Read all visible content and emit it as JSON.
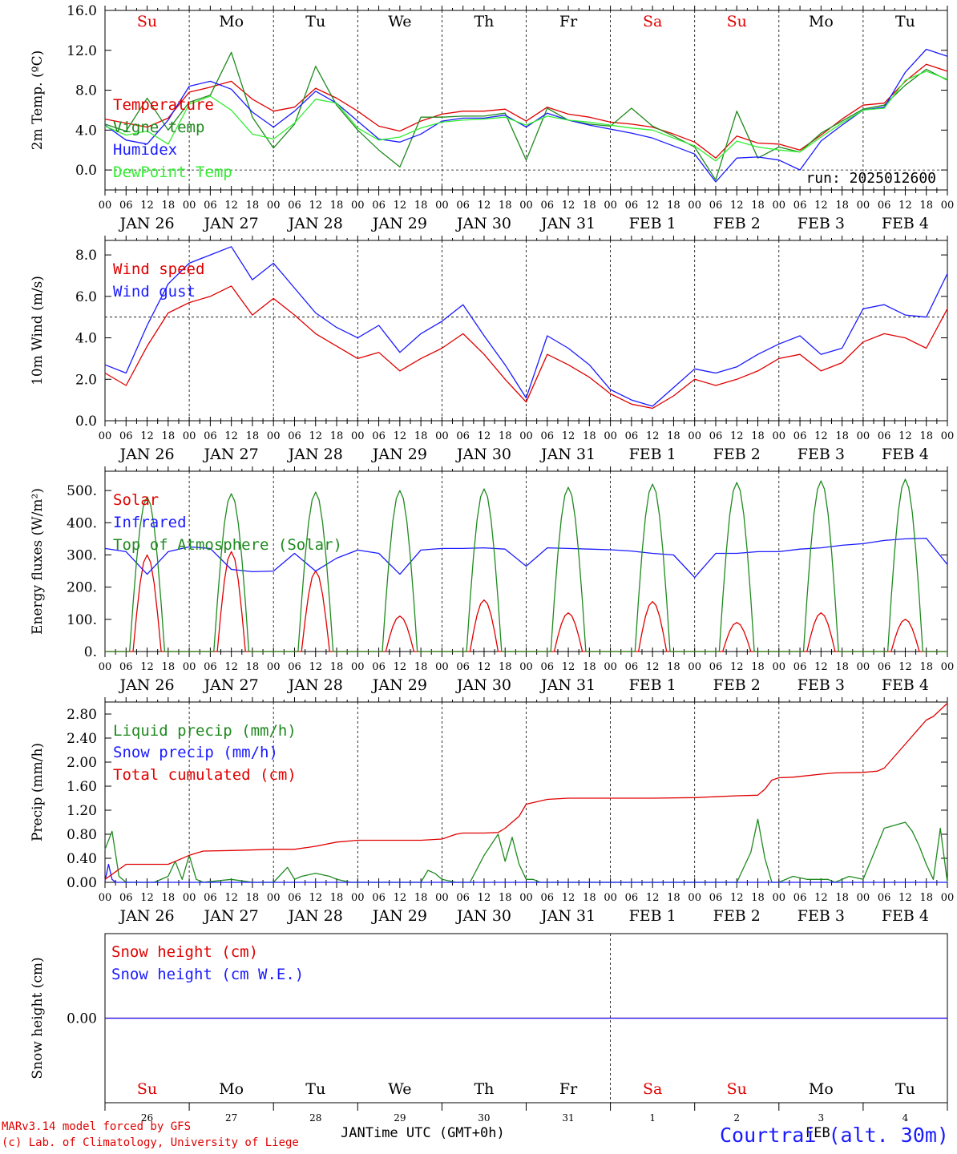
{
  "run_label": "run: 2025012600",
  "footer": {
    "model": "MARv3.14 model forced by GFS",
    "credit": "(c) Lab. of Climatology, University of Liege",
    "xaxis_title": "Time UTC (GMT+0h)",
    "month_left": "JAN",
    "month_right": "FEB",
    "station": "Courtrai (alt. 30m)"
  },
  "days": {
    "dates": [
      "JAN 26",
      "JAN 27",
      "JAN 28",
      "JAN 29",
      "JAN 30",
      "JAN 31",
      "FEB  1",
      "FEB  2",
      "FEB  3",
      "FEB  4"
    ],
    "weekdays": [
      "Su",
      "Mo",
      "Tu",
      "We",
      "Th",
      "Fr",
      "Sa",
      "Su",
      "Mo",
      "Tu"
    ],
    "weekday_colors": [
      "#e00000",
      "#000000",
      "#000000",
      "#000000",
      "#000000",
      "#000000",
      "#e00000",
      "#e00000",
      "#000000",
      "#000000"
    ],
    "day_numbers": [
      "26",
      "27",
      "28",
      "29",
      "30",
      "31",
      "1",
      "2",
      "3",
      "4"
    ],
    "hour_labels": [
      "00",
      "06",
      "12",
      "18"
    ],
    "end_hour_label": "00"
  },
  "colors": {
    "red": "#e00000",
    "green": "#1f8a1f",
    "blue": "#1a1aff",
    "lightgreen": "#33ee33"
  },
  "chart_data": [
    {
      "type": "line",
      "ylabel": "2m Temp. (ºC)",
      "ylim": [
        -2,
        16
      ],
      "yticks": [
        0,
        4,
        8,
        12,
        16
      ],
      "ytick_labels": [
        "0.0",
        "4.0",
        "8.0",
        "12.0",
        "16.0"
      ],
      "reference_line": 0,
      "x_unit": "hours since JAN 26 00 UTC",
      "x_range": [
        0,
        240
      ],
      "series": [
        {
          "name": "Temperature",
          "color": "#e00000",
          "x": [
            0,
            6,
            12,
            18,
            24,
            30,
            36,
            42,
            48,
            54,
            60,
            66,
            72,
            78,
            84,
            90,
            96,
            102,
            108,
            114,
            120,
            126,
            132,
            138,
            144,
            150,
            156,
            162,
            168,
            174,
            180,
            186,
            192,
            198,
            204,
            210,
            216,
            222,
            228,
            234,
            240
          ],
          "y": [
            5.1,
            4.7,
            4.3,
            5.2,
            7.8,
            8.3,
            8.9,
            7.1,
            5.9,
            6.3,
            8.2,
            7.2,
            5.9,
            4.4,
            3.9,
            4.9,
            5.6,
            5.9,
            5.9,
            6.1,
            4.9,
            6.3,
            5.6,
            5.3,
            4.8,
            4.6,
            4.3,
            3.6,
            2.8,
            1.2,
            3.4,
            2.7,
            2.6,
            2.0,
            3.5,
            5.1,
            6.5,
            6.7,
            8.9,
            10.6,
            9.9
          ]
        },
        {
          "name": "Vigne temp",
          "color": "#1f8a1f",
          "x": [
            0,
            6,
            12,
            18,
            24,
            30,
            36,
            42,
            48,
            54,
            60,
            66,
            72,
            78,
            84,
            90,
            96,
            102,
            108,
            114,
            120,
            126,
            132,
            138,
            144,
            150,
            156,
            162,
            168,
            174,
            180,
            186,
            192,
            198,
            204,
            210,
            216,
            222,
            228,
            234,
            240
          ],
          "y": [
            4.6,
            3.9,
            7.2,
            4.0,
            6.8,
            7.5,
            11.8,
            5.3,
            2.2,
            4.6,
            10.4,
            6.5,
            4.0,
            2.0,
            0.3,
            5.3,
            5.3,
            5.4,
            5.4,
            5.7,
            1.0,
            6.2,
            5.0,
            4.6,
            4.4,
            6.2,
            4.4,
            3.4,
            2.3,
            -1.0,
            5.9,
            1.2,
            2.3,
            1.8,
            3.7,
            4.9,
            6.1,
            6.5,
            8.5,
            10.1,
            9.0
          ]
        },
        {
          "name": "Humidex",
          "color": "#1a1aff",
          "x": [
            0,
            6,
            12,
            18,
            24,
            30,
            36,
            42,
            48,
            54,
            60,
            66,
            72,
            78,
            84,
            90,
            96,
            102,
            108,
            114,
            120,
            126,
            132,
            138,
            144,
            150,
            156,
            162,
            168,
            174,
            180,
            186,
            192,
            198,
            204,
            210,
            216,
            222,
            228,
            234,
            240
          ],
          "y": [
            4.5,
            3.0,
            2.6,
            5.0,
            8.4,
            8.9,
            8.1,
            5.8,
            4.3,
            5.9,
            7.9,
            6.7,
            4.9,
            3.1,
            2.8,
            3.6,
            4.9,
            5.2,
            5.2,
            5.5,
            4.3,
            5.7,
            5.0,
            4.5,
            4.1,
            3.7,
            3.2,
            2.4,
            1.6,
            -1.2,
            1.2,
            1.3,
            1.0,
            0.0,
            2.9,
            4.5,
            6.0,
            6.3,
            9.8,
            12.1,
            11.4
          ]
        },
        {
          "name": "DewPoint Temp",
          "color": "#33ee33",
          "x": [
            0,
            6,
            12,
            18,
            24,
            30,
            36,
            42,
            48,
            54,
            60,
            66,
            72,
            78,
            84,
            90,
            96,
            102,
            108,
            114,
            120,
            126,
            132,
            138,
            144,
            150,
            156,
            162,
            168,
            174,
            180,
            186,
            192,
            198,
            204,
            210,
            216,
            222,
            228,
            234,
            240
          ],
          "y": [
            4.4,
            3.5,
            3.9,
            2.6,
            6.6,
            7.4,
            6.0,
            3.6,
            3.1,
            4.7,
            7.1,
            6.7,
            4.2,
            3.0,
            3.3,
            4.2,
            4.8,
            5.0,
            5.1,
            5.3,
            4.5,
            5.4,
            5.0,
            4.8,
            4.5,
            4.2,
            4.0,
            3.2,
            2.4,
            0.9,
            2.9,
            2.3,
            2.0,
            1.8,
            3.3,
            4.7,
            6.0,
            6.2,
            9.0,
            9.9,
            9.1
          ]
        }
      ]
    },
    {
      "type": "line",
      "ylabel": "10m Wind (m/s)",
      "ylim": [
        0,
        8.7
      ],
      "yticks": [
        0,
        2,
        4,
        6,
        8
      ],
      "ytick_labels": [
        "0.0",
        "2.0",
        "4.0",
        "6.0",
        "8.0"
      ],
      "reference_line": 5,
      "x_unit": "hours since JAN 26 00 UTC",
      "x_range": [
        0,
        240
      ],
      "series": [
        {
          "name": "Wind speed",
          "color": "#e00000",
          "x": [
            0,
            6,
            12,
            18,
            24,
            30,
            36,
            42,
            48,
            54,
            60,
            66,
            72,
            78,
            84,
            90,
            96,
            102,
            108,
            114,
            120,
            126,
            132,
            138,
            144,
            150,
            156,
            162,
            168,
            174,
            180,
            186,
            192,
            198,
            204,
            210,
            216,
            222,
            228,
            234,
            240
          ],
          "y": [
            2.3,
            1.7,
            3.6,
            5.2,
            5.7,
            6.0,
            6.5,
            5.1,
            5.9,
            5.1,
            4.2,
            3.6,
            3.0,
            3.3,
            2.4,
            3.0,
            3.5,
            4.2,
            3.2,
            2.0,
            0.9,
            3.2,
            2.7,
            2.1,
            1.3,
            0.8,
            0.6,
            1.2,
            2.0,
            1.7,
            2.0,
            2.4,
            3.0,
            3.2,
            2.4,
            2.8,
            3.8,
            4.2,
            4.0,
            3.5,
            5.4
          ]
        },
        {
          "name": "Wind gust",
          "color": "#1a1aff",
          "x": [
            0,
            6,
            12,
            18,
            24,
            30,
            36,
            42,
            48,
            54,
            60,
            66,
            72,
            78,
            84,
            90,
            96,
            102,
            108,
            114,
            120,
            126,
            132,
            138,
            144,
            150,
            156,
            162,
            168,
            174,
            180,
            186,
            192,
            198,
            204,
            210,
            216,
            222,
            228,
            234,
            240
          ],
          "y": [
            2.7,
            2.3,
            4.6,
            6.6,
            7.6,
            8.0,
            8.4,
            6.8,
            7.6,
            6.4,
            5.2,
            4.5,
            4.0,
            4.6,
            3.3,
            4.2,
            4.8,
            5.6,
            4.1,
            2.7,
            1.1,
            4.1,
            3.5,
            2.7,
            1.5,
            1.0,
            0.7,
            1.6,
            2.5,
            2.3,
            2.6,
            3.2,
            3.7,
            4.1,
            3.2,
            3.5,
            5.4,
            5.6,
            5.1,
            5.0,
            7.1
          ]
        }
      ]
    },
    {
      "type": "line",
      "ylabel": "Energy fluxes (W/m²)",
      "ylim": [
        0,
        560
      ],
      "yticks": [
        0,
        100,
        200,
        300,
        400,
        500
      ],
      "ytick_labels": [
        "0.",
        "100.",
        "200.",
        "300.",
        "400.",
        "500."
      ],
      "x_unit": "hours since JAN 26 00 UTC",
      "x_range": [
        0,
        240
      ],
      "daily_peaks": {
        "Solar": [
          300,
          310,
          250,
          110,
          160,
          120,
          155,
          90,
          120,
          100
        ],
        "Top of Atmosphere (Solar)": [
          480,
          490,
          495,
          500,
          505,
          510,
          520,
          525,
          530,
          535
        ]
      },
      "series": [
        {
          "name": "Solar",
          "color": "#e00000"
        },
        {
          "name": "Infrared",
          "color": "#1a1aff",
          "x": [
            0,
            6,
            12,
            18,
            24,
            30,
            36,
            42,
            48,
            54,
            60,
            66,
            72,
            78,
            84,
            90,
            96,
            102,
            108,
            114,
            120,
            126,
            132,
            138,
            144,
            150,
            156,
            162,
            168,
            174,
            180,
            186,
            192,
            198,
            204,
            210,
            216,
            222,
            228,
            234,
            240
          ],
          "y": [
            320,
            310,
            240,
            310,
            325,
            320,
            255,
            248,
            250,
            305,
            250,
            290,
            315,
            305,
            240,
            315,
            320,
            320,
            322,
            318,
            265,
            322,
            320,
            318,
            316,
            312,
            305,
            300,
            230,
            305,
            305,
            310,
            310,
            318,
            322,
            330,
            335,
            345,
            350,
            352,
            270
          ]
        },
        {
          "name": "Top of Atmosphere (Solar)",
          "color": "#1f8a1f"
        }
      ]
    },
    {
      "type": "line",
      "ylabel": "Precip (mm/h)",
      "ylim": [
        0,
        3.0
      ],
      "yticks": [
        0,
        0.4,
        0.8,
        1.2,
        1.6,
        2.0,
        2.4,
        2.8
      ],
      "ytick_labels": [
        "0.00",
        "0.40",
        "0.80",
        "1.20",
        "1.60",
        "2.00",
        "2.40",
        "2.80"
      ],
      "x_unit": "hours since JAN 26 00 UTC",
      "x_range": [
        0,
        240
      ],
      "series": [
        {
          "name": "Liquid precip (mm/h)",
          "color": "#1f8a1f",
          "x": [
            0,
            2,
            4,
            6,
            8,
            14,
            18,
            20,
            22,
            24,
            26,
            28,
            36,
            42,
            48,
            52,
            54,
            56,
            60,
            64,
            66,
            70,
            74,
            78,
            84,
            90,
            92,
            94,
            96,
            100,
            104,
            108,
            112,
            114,
            116,
            118,
            120,
            122,
            124,
            126,
            136,
            144,
            156,
            168,
            180,
            184,
            186,
            188,
            190,
            192,
            196,
            200,
            204,
            206,
            208,
            212,
            216,
            222,
            228,
            230,
            232,
            234,
            236,
            238,
            240
          ],
          "y": [
            0.55,
            0.85,
            0.1,
            0,
            0,
            0,
            0.1,
            0.35,
            0.05,
            0.45,
            0.05,
            0,
            0.05,
            0,
            0,
            0.25,
            0.05,
            0.1,
            0.15,
            0.1,
            0.05,
            0,
            0,
            0,
            0,
            0,
            0.2,
            0.15,
            0.05,
            0,
            0,
            0.45,
            0.8,
            0.35,
            0.75,
            0.3,
            0.05,
            0.05,
            0,
            0,
            0,
            0,
            0,
            0,
            0,
            0.5,
            1.05,
            0.4,
            0,
            0,
            0.1,
            0.05,
            0.05,
            0.05,
            0,
            0.1,
            0.05,
            0.9,
            1.0,
            0.85,
            0.6,
            0.3,
            0.05,
            0.9,
            0
          ]
        },
        {
          "name": "Snow precip (mm/h)",
          "color": "#1a1aff",
          "x": [
            0,
            1,
            2,
            3,
            4,
            240
          ],
          "y": [
            0.02,
            0.3,
            0.05,
            0,
            0,
            0
          ]
        },
        {
          "name": "Total cumulated (cm)",
          "color": "#e00000",
          "x": [
            0,
            6,
            12,
            18,
            20,
            24,
            28,
            36,
            48,
            54,
            60,
            66,
            72,
            78,
            84,
            90,
            96,
            100,
            102,
            108,
            112,
            114,
            118,
            120,
            126,
            132,
            144,
            156,
            168,
            180,
            186,
            188,
            190,
            192,
            196,
            204,
            208,
            216,
            218,
            220,
            222,
            228,
            234,
            236,
            240
          ],
          "y": [
            0.05,
            0.3,
            0.3,
            0.3,
            0.35,
            0.45,
            0.52,
            0.53,
            0.55,
            0.55,
            0.6,
            0.67,
            0.7,
            0.7,
            0.7,
            0.7,
            0.72,
            0.8,
            0.82,
            0.82,
            0.83,
            0.9,
            1.1,
            1.3,
            1.38,
            1.4,
            1.4,
            1.4,
            1.41,
            1.44,
            1.45,
            1.55,
            1.7,
            1.74,
            1.75,
            1.8,
            1.82,
            1.83,
            1.84,
            1.85,
            1.9,
            2.3,
            2.7,
            2.76,
            2.98
          ]
        }
      ]
    },
    {
      "type": "line",
      "ylabel": "Snow height (cm)",
      "ylim": [
        -1,
        1
      ],
      "yticks": [
        0
      ],
      "ytick_labels": [
        "0.00"
      ],
      "x_unit": "hours since JAN 26 00 UTC",
      "x_range": [
        0,
        240
      ],
      "series": [
        {
          "name": "Snow height (cm)",
          "color": "#e00000",
          "x": [
            0,
            240
          ],
          "y": [
            0,
            0
          ]
        },
        {
          "name": "Snow height (cm W.E.)",
          "color": "#1a1aff",
          "x": [
            0,
            240
          ],
          "y": [
            0,
            0
          ]
        }
      ]
    }
  ]
}
